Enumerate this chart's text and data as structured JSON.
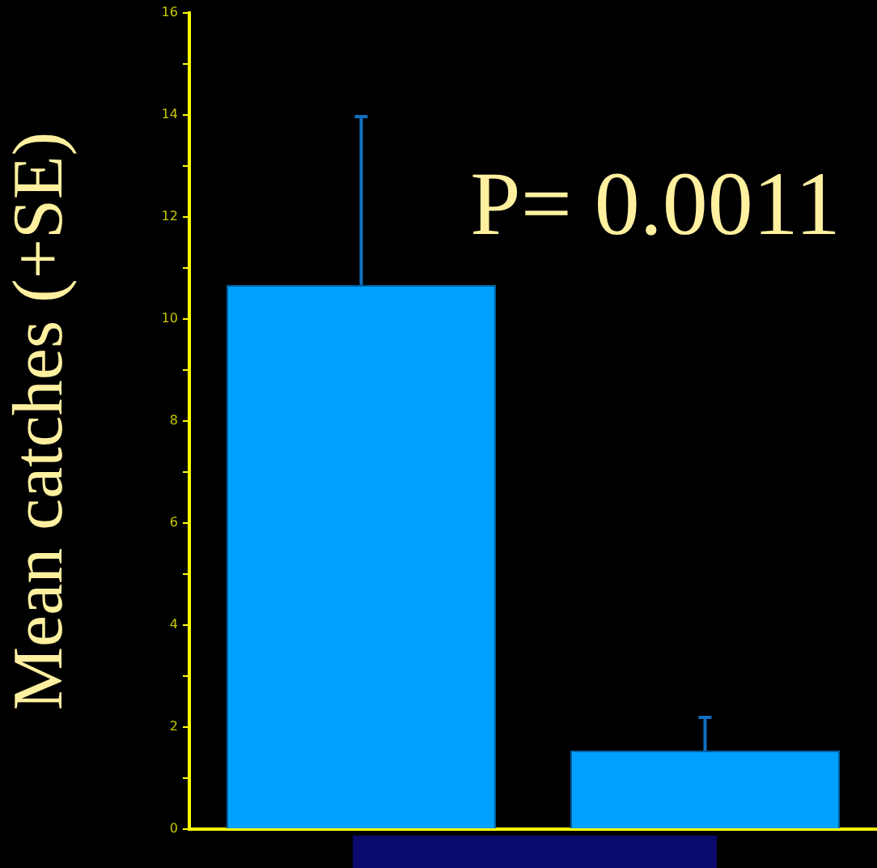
{
  "chart_data": {
    "type": "bar",
    "ylabel": "Mean catches (+SE)",
    "categories": [
      null,
      null
    ],
    "series": [
      {
        "color": "#00a0ff",
        "values": [
          10.67,
          1.54
        ],
        "errors": [
          [
            10.67,
            13.97
          ],
          [
            1.54,
            2.19
          ]
        ]
      }
    ],
    "ylim": [
      0,
      16
    ],
    "yticks": [
      0,
      {
        "value": 1,
        "label": null
      },
      2,
      {
        "value": 3,
        "label": null
      },
      4,
      {
        "value": 5,
        "label": null
      },
      6,
      {
        "value": 7,
        "label": null
      },
      8,
      {
        "value": 9,
        "label": null
      },
      10,
      {
        "value": 11,
        "label": null
      },
      12,
      {
        "value": 13,
        "label": null
      },
      14,
      {
        "value": 15,
        "label": null
      },
      16
    ],
    "annotations": [
      "P= 0.0011"
    ]
  }
}
